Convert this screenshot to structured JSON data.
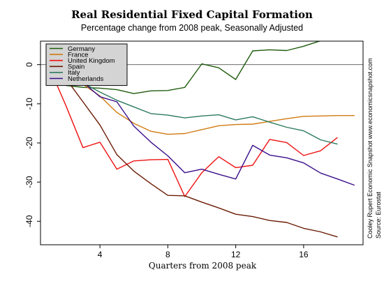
{
  "chart_data": {
    "type": "line",
    "title": "Real Residential Fixed Capital Formation",
    "subtitle": "Percentage change from 2008 peak, Seasonally Adjusted",
    "xlabel": "Quarters from 2008 peak",
    "ylabel": "",
    "xlim": [
      0.5,
      19.5
    ],
    "ylim": [
      -46,
      6
    ],
    "x_ticks": [
      4,
      8,
      12,
      16
    ],
    "y_ticks": [
      0,
      -10,
      -20,
      -30,
      -40
    ],
    "grid": false,
    "zero_line": true,
    "legend_position": "top-left",
    "series": [
      {
        "name": "Germany",
        "color": "#1f5c0d",
        "x": [
          1,
          2,
          3,
          4,
          5,
          6,
          7,
          8,
          9,
          10,
          11,
          12,
          13,
          14,
          15,
          16,
          17,
          18
        ],
        "values": [
          -1.0,
          -5.3,
          -5.8,
          -6.0,
          -6.4,
          -7.4,
          -6.7,
          -6.6,
          -5.8,
          0.2,
          -0.8,
          -3.8,
          3.5,
          3.8,
          3.6,
          4.7,
          6.1,
          6.5
        ]
      },
      {
        "name": "France",
        "color": "#d07a10",
        "x": [
          1,
          2,
          3,
          4,
          5,
          6,
          7,
          8,
          9,
          10,
          11,
          12,
          13,
          14,
          15,
          16,
          17,
          18,
          19
        ],
        "values": [
          -0.8,
          -3.3,
          -5.0,
          -8.0,
          -12.2,
          -15.0,
          -17.0,
          -17.8,
          -17.6,
          -16.6,
          -15.6,
          -15.3,
          -15.2,
          -14.5,
          -13.8,
          -13.2,
          -13.1,
          -13.0,
          -13.0
        ]
      },
      {
        "name": "United Kingdom",
        "color": "#ee1111",
        "x": [
          1,
          2,
          3,
          4,
          5,
          6,
          7,
          8,
          9,
          10,
          11,
          12,
          13,
          14,
          15,
          16,
          17,
          18
        ],
        "values": [
          -0.5,
          -10.5,
          -21.2,
          -19.8,
          -26.7,
          -24.6,
          -24.3,
          -24.2,
          -33.7,
          -27.6,
          -23.5,
          -26.3,
          -25.7,
          -19.1,
          -19.9,
          -23.2,
          -22.0,
          -18.6
        ]
      },
      {
        "name": "Spain",
        "color": "#6b1a04",
        "x": [
          1,
          2,
          3,
          4,
          5,
          6,
          7,
          8,
          9,
          10,
          11,
          12,
          13,
          14,
          15,
          16,
          17,
          18
        ],
        "values": [
          -0.3,
          -3.6,
          -9.5,
          -15.4,
          -23.0,
          -27.2,
          -30.4,
          -33.4,
          -33.5,
          -35.1,
          -36.6,
          -38.2,
          -38.8,
          -39.8,
          -40.3,
          -41.8,
          -42.7,
          -44.0
        ]
      },
      {
        "name": "Italy",
        "color": "#2d7a5d",
        "x": [
          1,
          2,
          3,
          4,
          5,
          6,
          7,
          8,
          9,
          10,
          11,
          12,
          13,
          14,
          15,
          16,
          17,
          18
        ],
        "values": [
          -0.2,
          -2.5,
          -4.7,
          -7.0,
          -9.1,
          -10.8,
          -12.5,
          -12.9,
          -13.6,
          -13.1,
          -12.8,
          -14.1,
          -13.3,
          -14.7,
          -16.0,
          -16.9,
          -19.2,
          -20.3
        ]
      },
      {
        "name": "Netherlands",
        "color": "#3b0d8a",
        "x": [
          1,
          2,
          3,
          4,
          5,
          6,
          7,
          8,
          9,
          10,
          11,
          12,
          13,
          14,
          15,
          16,
          17,
          18,
          19
        ],
        "values": [
          -0.5,
          -2.8,
          -4.5,
          -8.2,
          -9.5,
          -15.7,
          -19.8,
          -23.3,
          -27.6,
          -26.7,
          -28.0,
          -29.2,
          -20.6,
          -23.1,
          -23.8,
          -25.1,
          -27.7,
          -29.2,
          -30.8
        ]
      }
    ],
    "source_note": "Cooley Rupert Economic Snapshot  www.economicsnapshot.com",
    "source": "Source: Eurostat"
  }
}
